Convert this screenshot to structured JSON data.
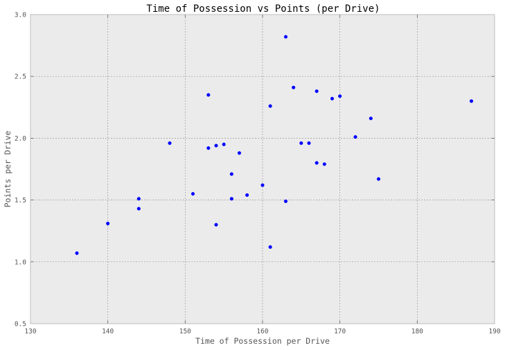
{
  "chart_data": {
    "type": "scatter",
    "title": "Time of Possession vs Points (per Drive)",
    "xlabel": "Time of Possession per Drive",
    "ylabel": "Points per Drive",
    "xlim": [
      130,
      190
    ],
    "ylim": [
      0.5,
      3.0
    ],
    "xticks": [
      130,
      140,
      150,
      160,
      170,
      180,
      190
    ],
    "yticks": [
      0.5,
      1.0,
      1.5,
      2.0,
      2.5,
      3.0
    ],
    "xtick_labels": [
      "130",
      "140",
      "150",
      "160",
      "170",
      "180",
      "190"
    ],
    "ytick_labels": [
      "0.5",
      "1.0",
      "1.5",
      "2.0",
      "2.5",
      "3.0"
    ],
    "grid": true,
    "colors": {
      "plot_background": "#ebebeb",
      "marker": "#0000ff",
      "frame": "#bcbcbc"
    },
    "series": [
      {
        "x": [
          136,
          140,
          144,
          144,
          148,
          151,
          153,
          153,
          154,
          154,
          155,
          156,
          156,
          157,
          158,
          160,
          161,
          161,
          163,
          163,
          164,
          165,
          166,
          167,
          167,
          168,
          169,
          170,
          172,
          174,
          175,
          187
        ],
        "y": [
          1.07,
          1.31,
          1.51,
          1.43,
          1.96,
          1.55,
          2.35,
          1.92,
          1.94,
          1.3,
          1.95,
          1.71,
          1.51,
          1.88,
          1.54,
          1.62,
          2.26,
          1.12,
          2.82,
          1.49,
          2.41,
          1.96,
          1.96,
          2.38,
          1.8,
          1.79,
          2.32,
          2.34,
          2.01,
          2.16,
          1.67,
          2.3
        ]
      }
    ]
  }
}
